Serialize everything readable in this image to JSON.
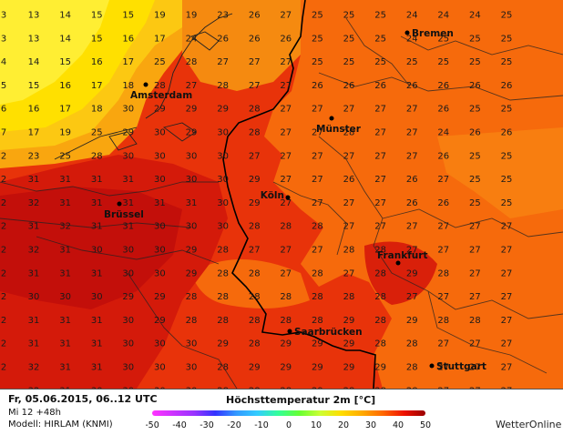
{
  "footer": {
    "date": "Fr, 05.06.2015, 06..12 UTC",
    "lead": "Mi 12 +48h",
    "model": "Modell: HIRLAM (KNMI)",
    "title": "Höchsttemperatur 2m [°C]",
    "brand": "WetterOnline",
    "scale_ticks": [
      "-50",
      "-40",
      "-30",
      "-20",
      "-10",
      "0",
      "10",
      "20",
      "30",
      "40",
      "50"
    ],
    "scale_colors": [
      "#ff33ff",
      "#cc33ff",
      "#9933ff",
      "#3333ff",
      "#3399ff",
      "#33ccff",
      "#33ff99",
      "#66ff33",
      "#ccff33",
      "#ffdd00",
      "#ffaa00",
      "#ff6600",
      "#ee1100",
      "#990000"
    ]
  },
  "cities": [
    {
      "name": "Bremen",
      "side": "right"
    },
    {
      "name": "Amsterdam",
      "side": "below"
    },
    {
      "name": "Münster",
      "side": "below"
    },
    {
      "name": "Brüssel",
      "side": "below"
    },
    {
      "name": "Köln",
      "side": "left"
    },
    {
      "name": "Frankfurt",
      "side": "above"
    },
    {
      "name": "Saarbrücken",
      "side": "right"
    },
    {
      "name": "Stuttgart",
      "side": "right"
    }
  ],
  "temperature_grid": [
    [
      "13",
      "14",
      "15",
      "15",
      "19",
      "19",
      "23",
      "26",
      "27",
      "25",
      "25",
      "25",
      "24",
      "24",
      "24",
      "25"
    ],
    [
      "13",
      "14",
      "15",
      "16",
      "17",
      "24",
      "26",
      "26",
      "26",
      "25",
      "25",
      "25",
      "24",
      "25",
      "25",
      "25"
    ],
    [
      "14",
      "15",
      "16",
      "17",
      "25",
      "28",
      "27",
      "27",
      "27",
      "25",
      "25",
      "25",
      "25",
      "25",
      "25",
      "25"
    ],
    [
      "15",
      "16",
      "17",
      "18",
      "28",
      "27",
      "28",
      "27",
      "27",
      "26",
      "26",
      "26",
      "26",
      "26",
      "26",
      "26"
    ],
    [
      "16",
      "17",
      "18",
      "30",
      "29",
      "29",
      "29",
      "28",
      "27",
      "27",
      "27",
      "27",
      "27",
      "26",
      "25",
      "25"
    ],
    [
      "17",
      "19",
      "25",
      "29",
      "30",
      "29",
      "30",
      "28",
      "27",
      "27",
      "28",
      "27",
      "27",
      "24",
      "26",
      "26"
    ],
    [
      "23",
      "25",
      "28",
      "30",
      "30",
      "30",
      "30",
      "27",
      "27",
      "27",
      "27",
      "27",
      "27",
      "26",
      "25",
      "25"
    ],
    [
      "31",
      "31",
      "31",
      "31",
      "30",
      "30",
      "30",
      "29",
      "27",
      "27",
      "26",
      "27",
      "26",
      "27",
      "25",
      "25"
    ],
    [
      "32",
      "31",
      "31",
      "31",
      "31",
      "31",
      "30",
      "29",
      "27",
      "27",
      "27",
      "27",
      "26",
      "26",
      "25",
      "25"
    ],
    [
      "31",
      "32",
      "31",
      "31",
      "30",
      "30",
      "30",
      "28",
      "28",
      "28",
      "27",
      "27",
      "27",
      "27",
      "27",
      "27"
    ],
    [
      "32",
      "31",
      "30",
      "30",
      "30",
      "29",
      "28",
      "27",
      "27",
      "27",
      "28",
      "28",
      "27",
      "27",
      "27",
      "27"
    ],
    [
      "31",
      "31",
      "31",
      "30",
      "30",
      "29",
      "28",
      "28",
      "27",
      "28",
      "27",
      "28",
      "29",
      "28",
      "27",
      "27"
    ],
    [
      "30",
      "30",
      "30",
      "29",
      "29",
      "28",
      "28",
      "28",
      "28",
      "28",
      "28",
      "28",
      "27",
      "27",
      "27",
      "27"
    ],
    [
      "31",
      "31",
      "31",
      "30",
      "29",
      "28",
      "28",
      "28",
      "28",
      "28",
      "29",
      "28",
      "29",
      "28",
      "28",
      "27"
    ],
    [
      "31",
      "31",
      "31",
      "30",
      "30",
      "30",
      "29",
      "28",
      "29",
      "29",
      "29",
      "28",
      "28",
      "27",
      "27",
      "27"
    ],
    [
      "32",
      "31",
      "31",
      "30",
      "30",
      "30",
      "28",
      "29",
      "29",
      "29",
      "29",
      "29",
      "28",
      "27",
      "27",
      "27"
    ],
    [
      "32",
      "31",
      "30",
      "30",
      "30",
      "30",
      "28",
      "28",
      "28",
      "29",
      "28",
      "28",
      "28",
      "27",
      "27",
      "27"
    ]
  ],
  "partial_left_column": [
    "3",
    "3",
    "4",
    "5",
    "6",
    "7",
    "2",
    "2",
    "2",
    "2",
    "2",
    "2",
    "2",
    "2",
    "2",
    "2"
  ]
}
